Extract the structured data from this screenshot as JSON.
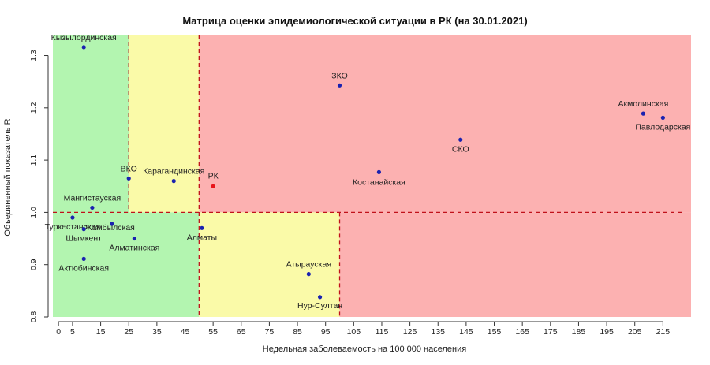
{
  "chart_data": {
    "type": "scatter",
    "title": "Матрица оценки эпидемиологической ситуации в РК (на 30.01.2021)",
    "xlabel": "Недельная заболеваемость на 100 000 населения",
    "ylabel": "Объединенный показатель R",
    "xlim": [
      -2,
      225
    ],
    "ylim": [
      0.8,
      1.34
    ],
    "x_ticks": [
      0,
      5,
      15,
      25,
      35,
      45,
      55,
      65,
      75,
      85,
      95,
      105,
      115,
      125,
      135,
      145,
      155,
      165,
      175,
      185,
      195,
      205,
      215
    ],
    "y_ticks": [
      0.8,
      0.9,
      1.0,
      1.1,
      1.2,
      1.3
    ],
    "y_tick_labels": [
      "0.8",
      "0.9",
      "1.0",
      "1.1",
      "1.2",
      "1.3"
    ],
    "thresholds": {
      "x": [
        25,
        50,
        100
      ],
      "y": 1.0
    },
    "zones": [
      {
        "x": [
          -2,
          25
        ],
        "y": [
          1.0,
          1.34
        ],
        "color": "#b3f5b0"
      },
      {
        "x": [
          25,
          50
        ],
        "y": [
          1.0,
          1.34
        ],
        "color": "#fafaa8"
      },
      {
        "x": [
          50,
          225
        ],
        "y": [
          1.0,
          1.34
        ],
        "color": "#fcb1b1"
      },
      {
        "x": [
          -2,
          50
        ],
        "y": [
          0.8,
          1.0
        ],
        "color": "#b3f5b0"
      },
      {
        "x": [
          50,
          100
        ],
        "y": [
          0.8,
          1.0
        ],
        "color": "#fafaa8"
      },
      {
        "x": [
          100,
          225
        ],
        "y": [
          0.8,
          1.0
        ],
        "color": "#fcb1b1"
      }
    ],
    "points": [
      {
        "label": "Кызылординская",
        "x": 9,
        "y": 1.316,
        "color": "#1a22b0"
      },
      {
        "label": "ЗКО",
        "x": 100,
        "y": 1.243,
        "color": "#1a22b0"
      },
      {
        "label": "Акмолинская",
        "x": 208,
        "y": 1.189,
        "color": "#1a22b0"
      },
      {
        "label": "Павлодарская",
        "x": 215,
        "y": 1.181,
        "color": "#1a22b0"
      },
      {
        "label": "СКО",
        "x": 143,
        "y": 1.139,
        "color": "#1a22b0"
      },
      {
        "label": "Костанайская",
        "x": 114,
        "y": 1.077,
        "color": "#1a22b0"
      },
      {
        "label": "ВКО",
        "x": 25,
        "y": 1.065,
        "color": "#1a22b0"
      },
      {
        "label": "Карагандинская",
        "x": 41,
        "y": 1.06,
        "color": "#1a22b0"
      },
      {
        "label": "РК",
        "x": 55,
        "y": 1.05,
        "color": "#e8161b"
      },
      {
        "label": "Мангистауская",
        "x": 12,
        "y": 1.009,
        "color": "#1a22b0"
      },
      {
        "label": "Жамбылская",
        "x": 19,
        "y": 0.978,
        "color": "#1a22b0"
      },
      {
        "label": "Туркестанская",
        "x": 5,
        "y": 0.99,
        "color": "#1a22b0"
      },
      {
        "label": "Шымкент",
        "x": 9,
        "y": 0.968,
        "color": "#1a22b0"
      },
      {
        "label": "Алматы",
        "x": 51,
        "y": 0.97,
        "color": "#1a22b0"
      },
      {
        "label": "Алматинская",
        "x": 27,
        "y": 0.95,
        "color": "#1a22b0"
      },
      {
        "label": "Актюбинская",
        "x": 9,
        "y": 0.911,
        "color": "#1a22b0"
      },
      {
        "label": "Атырауская",
        "x": 89,
        "y": 0.882,
        "color": "#1a22b0"
      },
      {
        "label": "Нур-Султан",
        "x": 93,
        "y": 0.838,
        "color": "#1a22b0"
      }
    ],
    "colors": {
      "line": "#c0111a",
      "point": "#1a22b0",
      "rk": "#e8161b"
    }
  }
}
